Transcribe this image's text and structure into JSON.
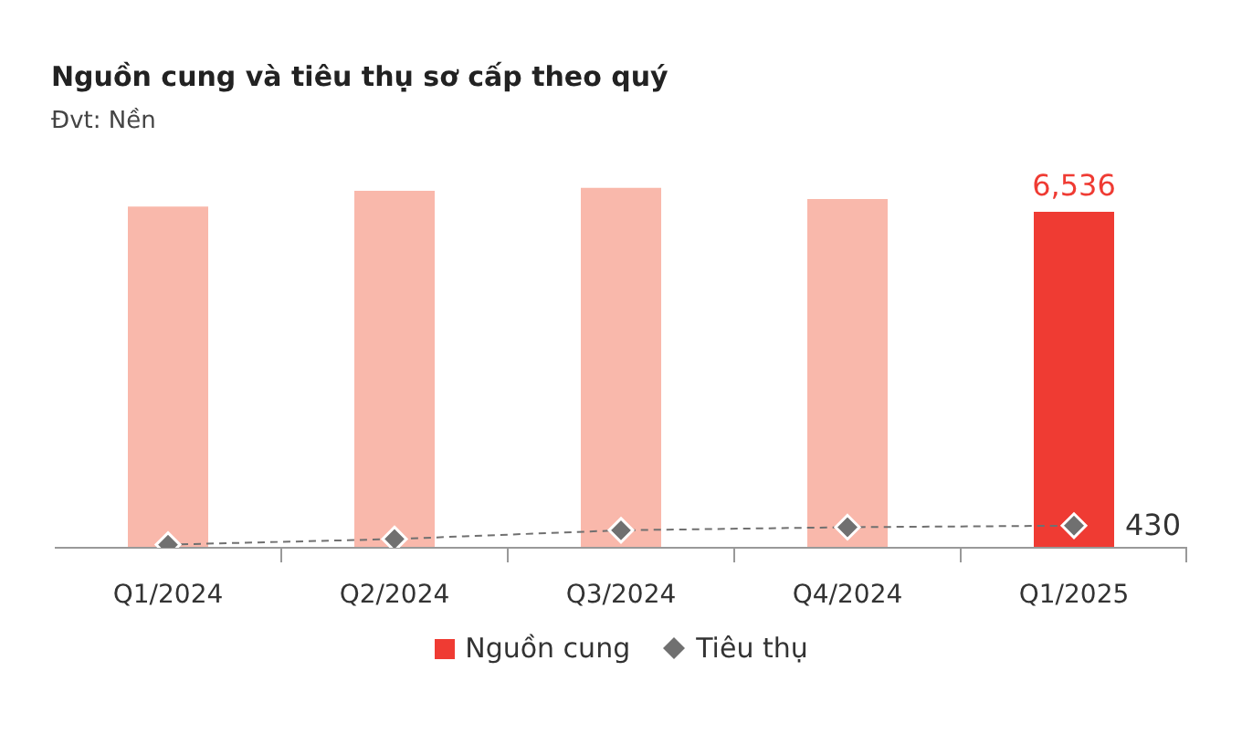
{
  "chart_data": {
    "type": "bar",
    "title": "Nguồn cung và tiêu thụ sơ cấp theo quý",
    "subtitle": "Đvt: Nền",
    "categories": [
      "Q1/2024",
      "Q2/2024",
      "Q3/2024",
      "Q4/2024",
      "Q1/2025"
    ],
    "series": [
      {
        "name": "Nguồn cung",
        "color": "#ef3b33",
        "colors": [
          "#f9b8ab",
          "#f9b8ab",
          "#f9b8ab",
          "#f9b8ab",
          "#ef3b33"
        ],
        "values": [
          6637,
          6943,
          7000,
          6783,
          6536
        ],
        "value_labels": [
          null,
          null,
          null,
          null,
          "6,536"
        ]
      },
      {
        "name": "Tiêu thụ",
        "type": "line",
        "color": "#707070",
        "marker": "diamond",
        "line_style": "dashed",
        "values": [
          60,
          170,
          340,
          400,
          430
        ],
        "value_labels": [
          null,
          null,
          null,
          null,
          "430"
        ]
      }
    ],
    "legend": "bottom",
    "grid": false
  }
}
